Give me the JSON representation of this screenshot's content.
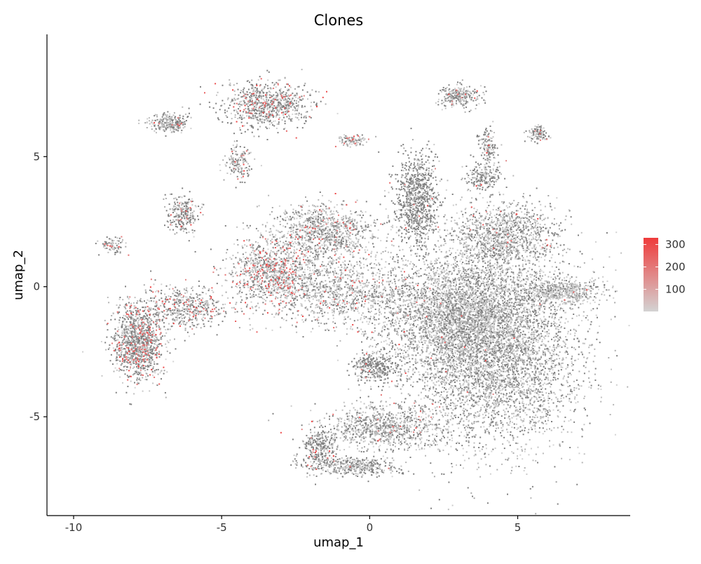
{
  "chart_data": {
    "type": "scatter",
    "title": "Clones",
    "xlabel": "umap_1",
    "ylabel": "umap_2",
    "xlim": [
      -10.9,
      8.8
    ],
    "ylim": [
      -8.8,
      9.7
    ],
    "x_ticks": [
      {
        "value": -10,
        "label": "-10"
      },
      {
        "value": -5,
        "label": "-5"
      },
      {
        "value": 0,
        "label": "0"
      },
      {
        "value": 5,
        "label": "5"
      }
    ],
    "y_ticks": [
      {
        "value": -5,
        "label": "-5"
      },
      {
        "value": 0,
        "label": "0"
      },
      {
        "value": 5,
        "label": "5"
      }
    ],
    "grid": false,
    "legend": {
      "position": "right",
      "type": "colorbar",
      "min": 1,
      "max": 330,
      "ticks": [
        {
          "value": 100,
          "label": "100"
        },
        {
          "value": 200,
          "label": "200"
        },
        {
          "value": 300,
          "label": "300"
        }
      ],
      "color_low": "#d3d3d3",
      "color_high": "#ef3b3b"
    },
    "point_color_gray_dark": "#7f7f7f",
    "clusters": [
      {
        "cx": 4.2,
        "cy": -2.3,
        "sx": 1.9,
        "sy": 2.5,
        "n": 5200,
        "red": 0.004,
        "dark": 0.35
      },
      {
        "cx": 2.6,
        "cy": -1.0,
        "sx": 1.7,
        "sy": 1.4,
        "n": 2200,
        "red": 0.006,
        "dark": 0.3
      },
      {
        "cx": 6.5,
        "cy": -0.2,
        "sx": 0.9,
        "sy": 0.35,
        "n": 500,
        "red": 0.003,
        "dark": 0.2
      },
      {
        "cx": 1.6,
        "cy": 3.3,
        "sx": 0.5,
        "sy": 1.2,
        "n": 900,
        "red": 0.01,
        "dark": 0.7
      },
      {
        "cx": 4.6,
        "cy": 2.0,
        "sx": 1.2,
        "sy": 0.9,
        "n": 1100,
        "red": 0.02,
        "dark": 0.35
      },
      {
        "cx": 3.8,
        "cy": 4.2,
        "sx": 0.4,
        "sy": 0.35,
        "n": 200,
        "red": 0.02,
        "dark": 0.5
      },
      {
        "cx": 3.0,
        "cy": 7.3,
        "sx": 0.45,
        "sy": 0.3,
        "n": 250,
        "red": 0.05,
        "dark": 0.4
      },
      {
        "cx": 4.0,
        "cy": 5.4,
        "sx": 0.2,
        "sy": 0.45,
        "n": 120,
        "red": 0.03,
        "dark": 0.5
      },
      {
        "cx": 5.7,
        "cy": 5.9,
        "sx": 0.25,
        "sy": 0.2,
        "n": 100,
        "red": 0.02,
        "dark": 0.5
      },
      {
        "cx": -1.5,
        "cy": 2.1,
        "sx": 1.2,
        "sy": 0.7,
        "n": 1000,
        "red": 0.06,
        "dark": 0.3
      },
      {
        "cx": -3.3,
        "cy": 0.5,
        "sx": 1.0,
        "sy": 0.9,
        "n": 1000,
        "red": 0.15,
        "dark": 0.25
      },
      {
        "cx": -1.0,
        "cy": -0.2,
        "sx": 1.6,
        "sy": 0.9,
        "n": 1000,
        "red": 0.05,
        "dark": 0.25
      },
      {
        "cx": -7.8,
        "cy": -2.1,
        "sx": 0.55,
        "sy": 1.0,
        "n": 1200,
        "red": 0.12,
        "dark": 0.45
      },
      {
        "cx": -6.2,
        "cy": -0.8,
        "sx": 0.9,
        "sy": 0.5,
        "n": 500,
        "red": 0.08,
        "dark": 0.4
      },
      {
        "cx": -6.3,
        "cy": 2.8,
        "sx": 0.35,
        "sy": 0.5,
        "n": 250,
        "red": 0.05,
        "dark": 0.5
      },
      {
        "cx": -8.7,
        "cy": 1.6,
        "sx": 0.3,
        "sy": 0.2,
        "n": 80,
        "red": 0.05,
        "dark": 0.4
      },
      {
        "cx": -3.5,
        "cy": 7.0,
        "sx": 1.0,
        "sy": 0.6,
        "n": 800,
        "red": 0.08,
        "dark": 0.45
      },
      {
        "cx": -6.8,
        "cy": 6.3,
        "sx": 0.45,
        "sy": 0.25,
        "n": 250,
        "red": 0.04,
        "dark": 0.45
      },
      {
        "cx": -4.4,
        "cy": 4.8,
        "sx": 0.3,
        "sy": 0.5,
        "n": 150,
        "red": 0.08,
        "dark": 0.4
      },
      {
        "cx": -0.6,
        "cy": 5.6,
        "sx": 0.35,
        "sy": 0.15,
        "n": 100,
        "red": 0.08,
        "dark": 0.3
      },
      {
        "cx": 0.2,
        "cy": -3.1,
        "sx": 0.5,
        "sy": 0.4,
        "n": 350,
        "red": 0.01,
        "dark": 0.75
      },
      {
        "cx": 0.5,
        "cy": -5.4,
        "sx": 1.4,
        "sy": 0.6,
        "n": 900,
        "red": 0.02,
        "dark": 0.35
      },
      {
        "cx": -1.7,
        "cy": -6.2,
        "sx": 0.4,
        "sy": 0.5,
        "n": 300,
        "red": 0.05,
        "dark": 0.6
      },
      {
        "cx": -0.5,
        "cy": -6.9,
        "sx": 1.0,
        "sy": 0.25,
        "n": 400,
        "red": 0.02,
        "dark": 0.4
      }
    ]
  }
}
